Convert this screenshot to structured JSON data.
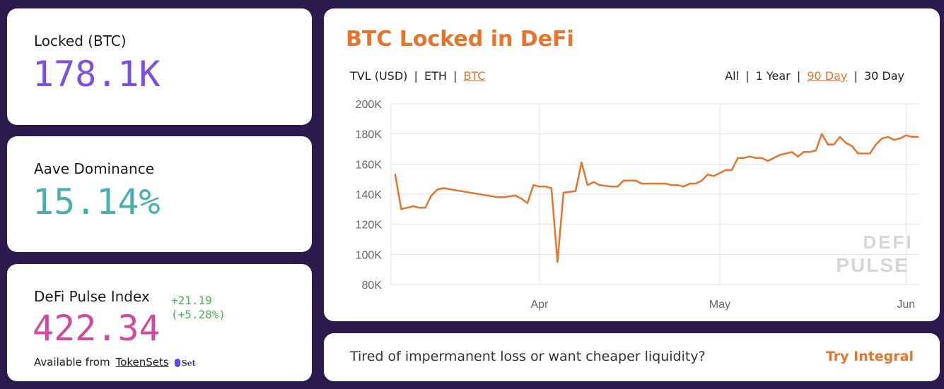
{
  "stats": {
    "locked": {
      "label": "Locked (BTC)",
      "value": "178.1K",
      "color": "#7b4fe0"
    },
    "dominance": {
      "label": "Aave Dominance",
      "value": "15.14%",
      "color": "#4aaeb2"
    },
    "index": {
      "label": "DeFi Pulse Index",
      "value": "422.34",
      "color": "#d04a9f",
      "change": "+21.19",
      "change_pct": "(+5.28%)",
      "change_color": "#4caf50",
      "available_label": "Available from",
      "link": "TokenSets",
      "logo_text": "Set"
    }
  },
  "chart_panel": {
    "title": "BTC Locked in DeFi",
    "units": [
      "TVL (USD)",
      "ETH",
      "BTC"
    ],
    "selected_unit": "BTC",
    "ranges": [
      "All",
      "1 Year",
      "90 Day",
      "30 Day"
    ],
    "selected_range": "90 Day",
    "separator": "|",
    "watermark": "DEFI PULSE"
  },
  "chart_data": {
    "type": "line",
    "title": "",
    "xlabel": "",
    "ylabel": "",
    "ylim": [
      80000,
      200000
    ],
    "yticks": [
      "80K",
      "100K",
      "120K",
      "140K",
      "160K",
      "180K",
      "200K"
    ],
    "xticks": [
      "Apr",
      "May",
      "Jun"
    ],
    "grid": true,
    "line_color": "#e8732a",
    "series": [
      {
        "x": [
          "03-08",
          "03-09",
          "03-11",
          "03-12",
          "03-13",
          "03-14",
          "03-15",
          "03-16",
          "03-25",
          "03-26",
          "03-28",
          "03-29",
          "03-30",
          "03-31",
          "04-01",
          "04-02",
          "04-03",
          "04-04",
          "04-05",
          "04-07",
          "04-08",
          "04-09",
          "04-10",
          "04-11",
          "04-13",
          "04-14",
          "04-15",
          "04-17",
          "04-18",
          "04-19",
          "04-22",
          "04-23",
          "04-24",
          "04-25",
          "04-26",
          "04-27",
          "04-28",
          "04-29",
          "04-30",
          "05-01",
          "05-02",
          "05-03",
          "05-04",
          "05-05",
          "05-06",
          "05-07",
          "05-08",
          "05-09",
          "05-10",
          "05-11",
          "05-12",
          "05-13",
          "05-14",
          "05-15",
          "05-16",
          "05-17",
          "05-18",
          "05-19",
          "05-20",
          "05-21",
          "05-22",
          "05-23",
          "05-24",
          "05-26",
          "05-27",
          "05-28",
          "05-29",
          "05-30",
          "05-31",
          "06-01",
          "06-02",
          "06-03"
        ],
        "y": [
          153000,
          130000,
          132000,
          131000,
          131000,
          139000,
          143000,
          144000,
          138000,
          138000,
          139000,
          137000,
          134000,
          146000,
          145000,
          145000,
          144000,
          95000,
          141000,
          142000,
          161000,
          146000,
          148000,
          146000,
          145000,
          145000,
          149000,
          149000,
          147000,
          147000,
          147000,
          146000,
          146000,
          145000,
          147000,
          147000,
          149000,
          153000,
          152000,
          154000,
          156000,
          156000,
          164000,
          164000,
          165000,
          164000,
          164000,
          162000,
          164000,
          166000,
          167000,
          168000,
          165000,
          168000,
          168000,
          169000,
          180000,
          173000,
          173000,
          178000,
          174000,
          172000,
          167000,
          167000,
          173000,
          177000,
          178000,
          176000,
          177000,
          179000,
          178000,
          178000
        ]
      }
    ]
  },
  "promo": {
    "text": "Tired of impermanent loss or want cheaper liquidity?",
    "cta": "Try Integral"
  }
}
